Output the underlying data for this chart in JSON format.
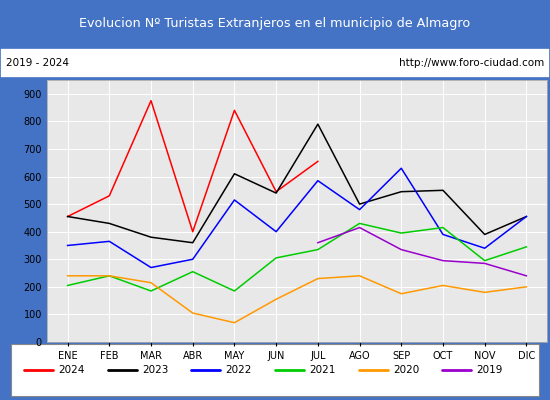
{
  "title": "Evolucion Nº Turistas Extranjeros en el municipio de Almagro",
  "subtitle_left": "2019 - 2024",
  "subtitle_right": "http://www.foro-ciudad.com",
  "months": [
    "ENE",
    "FEB",
    "MAR",
    "ABR",
    "MAY",
    "JUN",
    "JUL",
    "AGO",
    "SEP",
    "OCT",
    "NOV",
    "DIC"
  ],
  "series": {
    "2024": {
      "color": "#ff0000",
      "data": [
        455,
        530,
        875,
        400,
        840,
        545,
        655,
        null,
        null,
        null,
        null,
        null
      ]
    },
    "2023": {
      "color": "#000000",
      "data": [
        455,
        430,
        380,
        360,
        610,
        540,
        790,
        500,
        545,
        550,
        390,
        455
      ]
    },
    "2022": {
      "color": "#0000ff",
      "data": [
        350,
        365,
        270,
        300,
        515,
        400,
        585,
        480,
        630,
        390,
        340,
        455
      ]
    },
    "2021": {
      "color": "#00cc00",
      "data": [
        205,
        240,
        185,
        255,
        185,
        305,
        335,
        430,
        395,
        415,
        295,
        345
      ]
    },
    "2020": {
      "color": "#ff9900",
      "data": [
        240,
        240,
        215,
        105,
        70,
        155,
        230,
        240,
        175,
        205,
        180,
        200
      ]
    },
    "2019": {
      "color": "#9900cc",
      "data": [
        null,
        null,
        null,
        null,
        null,
        null,
        360,
        415,
        335,
        295,
        285,
        240
      ]
    }
  },
  "ylim": [
    0,
    950
  ],
  "yticks": [
    0,
    100,
    200,
    300,
    400,
    500,
    600,
    700,
    800,
    900
  ],
  "title_bg": "#4472c4",
  "title_color": "#ffffff",
  "plot_bg": "#e8e8e8",
  "grid_color": "#ffffff",
  "legend_order": [
    "2024",
    "2023",
    "2022",
    "2021",
    "2020",
    "2019"
  ],
  "fig_bg": "#4472c4"
}
